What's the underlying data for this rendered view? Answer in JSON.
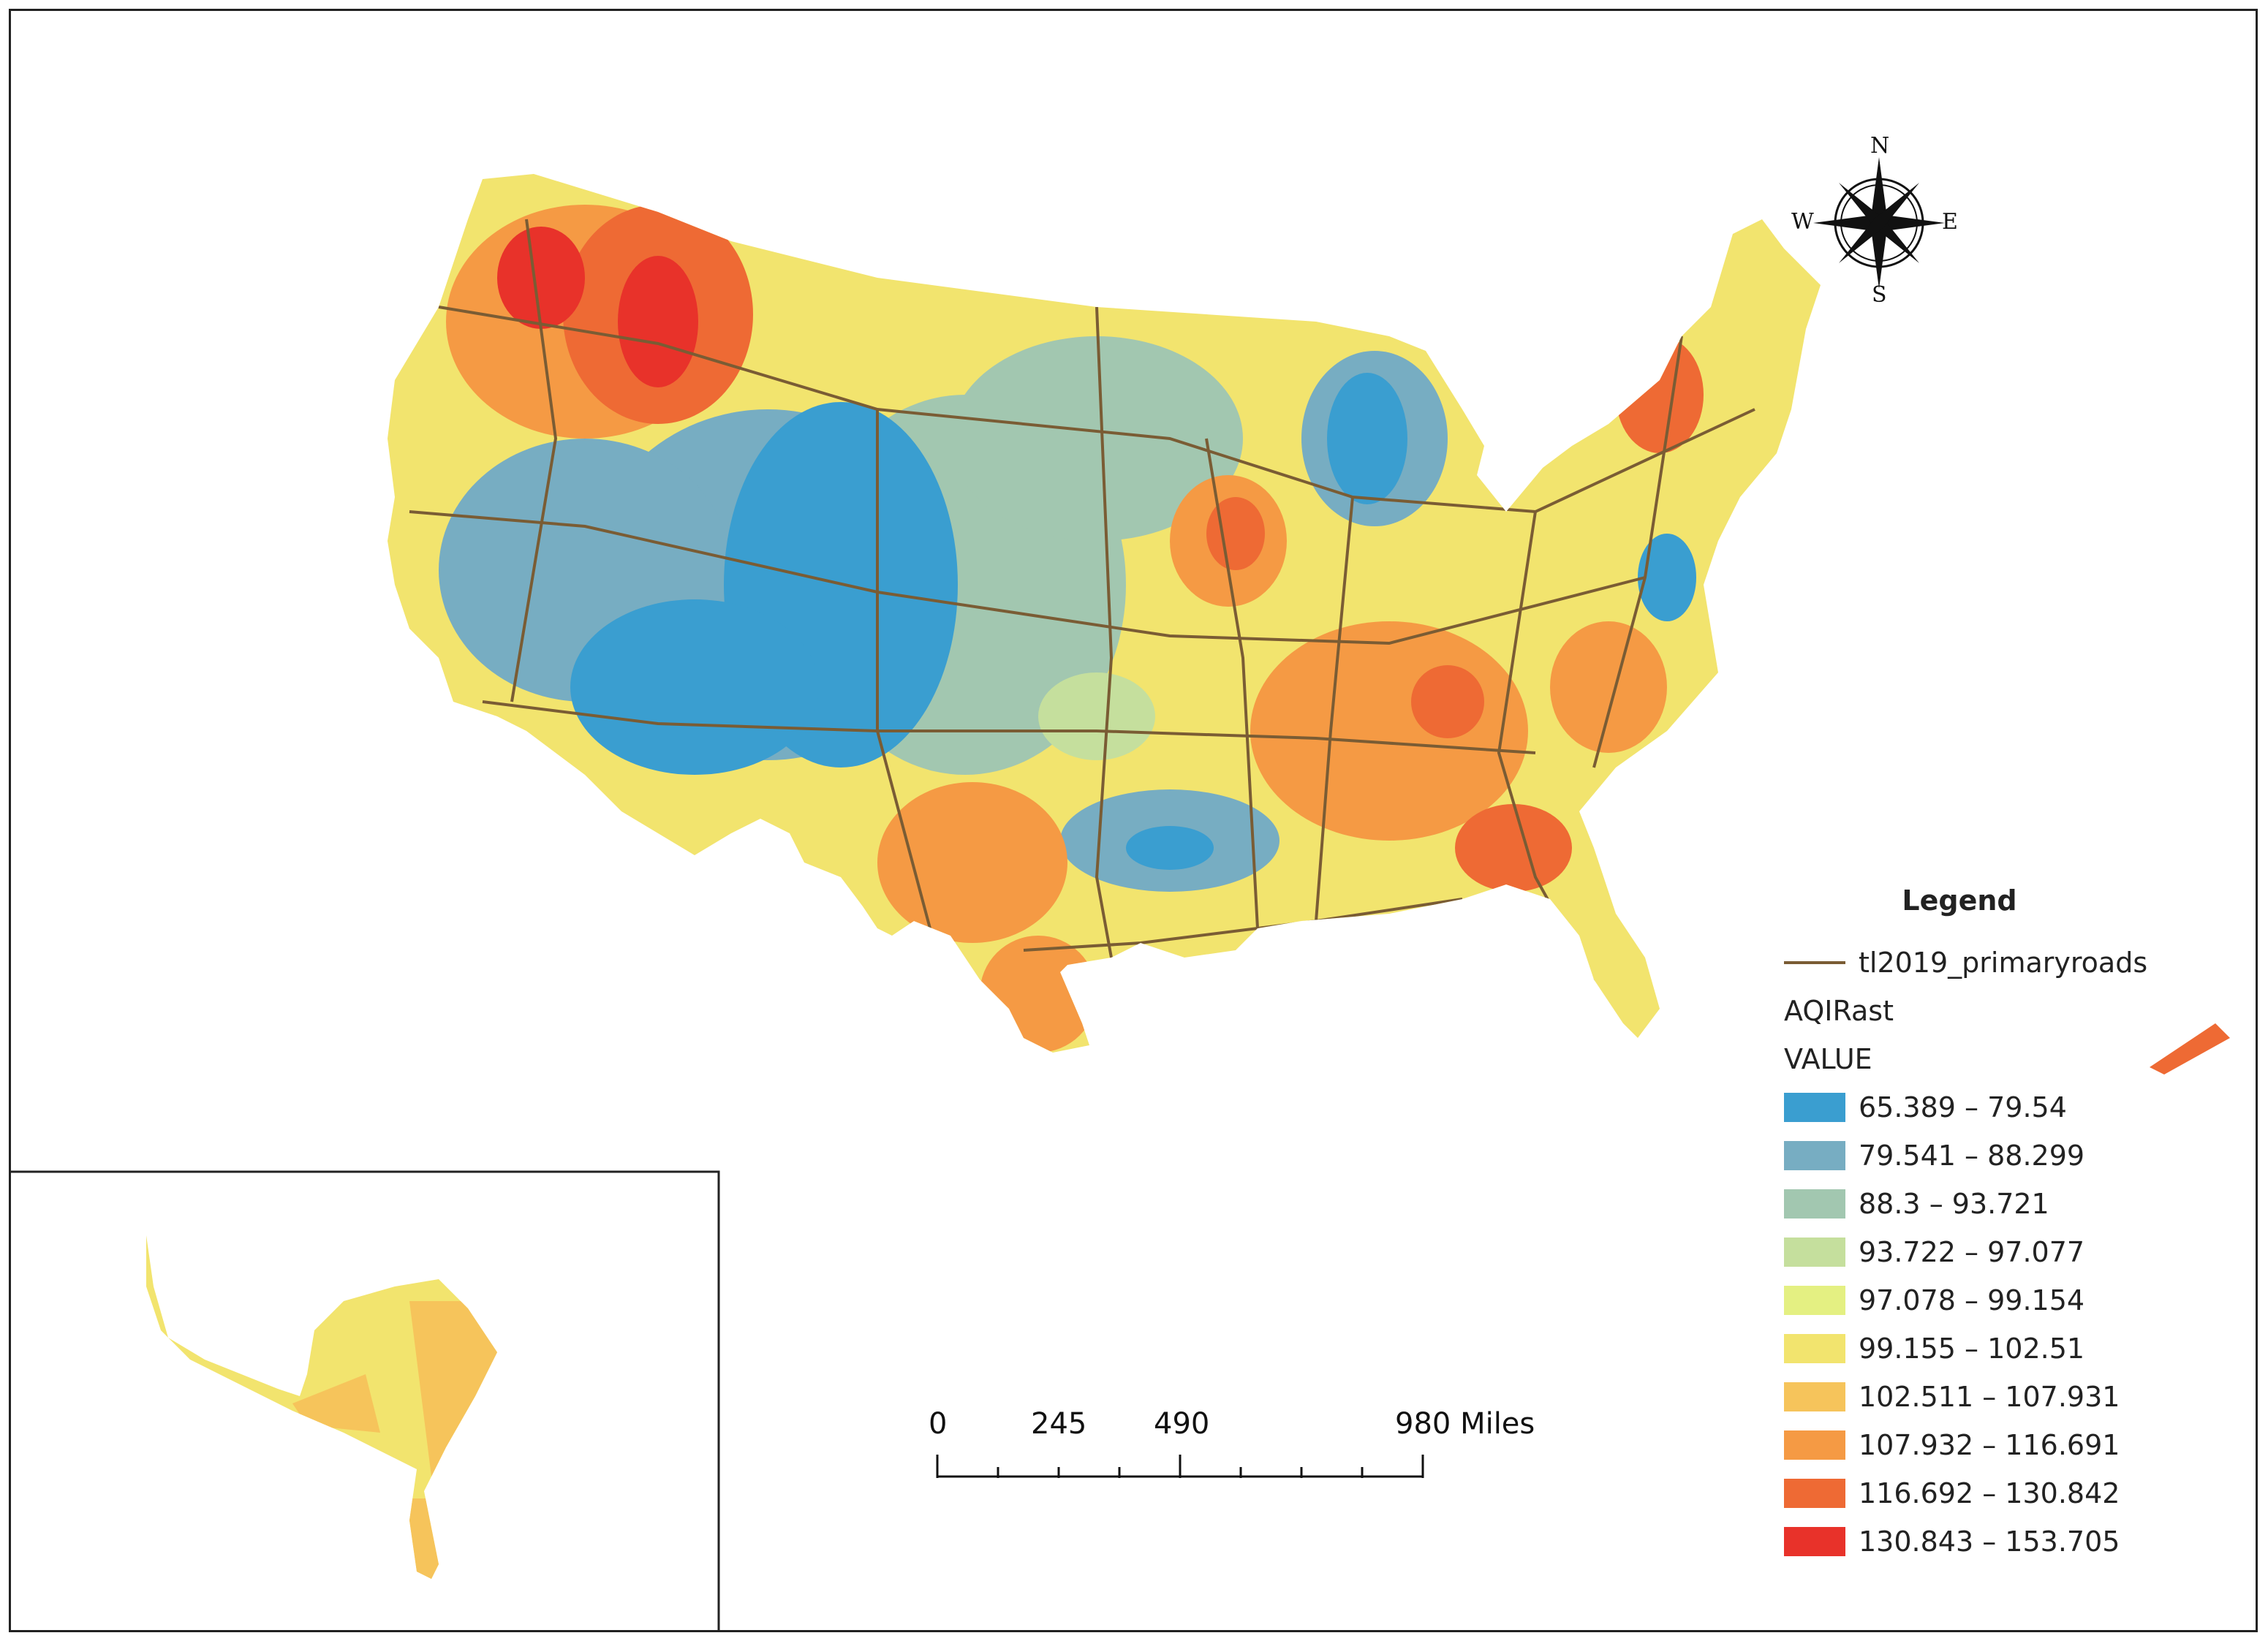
{
  "legend": {
    "title": "Legend",
    "roads_label": "tl2019_primaryroads",
    "raster_label": "AQIRast",
    "field_label": "VALUE",
    "classes": [
      {
        "label": "65.389 – 79.54",
        "color": "#3a9ed0"
      },
      {
        "label": "79.541 – 88.299",
        "color": "#77adc2"
      },
      {
        "label": "88.3 – 93.721",
        "color": "#a2c7b0"
      },
      {
        "label": "93.722 – 97.077",
        "color": "#c5df9d"
      },
      {
        "label": "97.078 – 99.154",
        "color": "#e4f082"
      },
      {
        "label": "99.155 – 102.51",
        "color": "#f2e46e"
      },
      {
        "label": "102.511 – 107.931",
        "color": "#f6c45b"
      },
      {
        "label": "107.932 – 116.691",
        "color": "#f59a44"
      },
      {
        "label": "116.692 – 130.842",
        "color": "#ee6a34"
      },
      {
        "label": "130.843 – 153.705",
        "color": "#e8322a"
      }
    ],
    "road_color": "#7a5c34"
  },
  "scale_bar": {
    "labels": [
      "0",
      "245",
      "490",
      "980 Miles"
    ]
  },
  "compass": {
    "n": "N",
    "s": "S",
    "e": "E",
    "w": "W"
  }
}
